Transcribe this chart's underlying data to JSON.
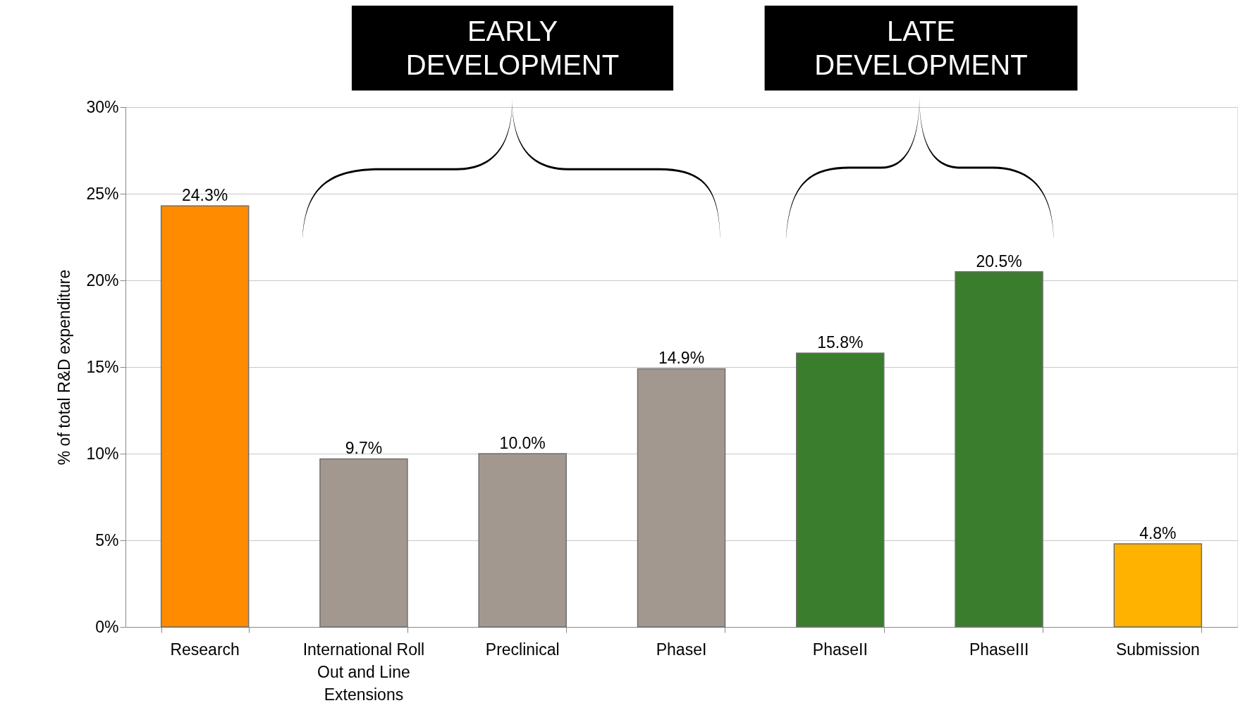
{
  "chart_data": {
    "type": "bar",
    "ylabel": "% of total R&D expenditure",
    "categories": [
      "Research",
      "International Roll Out and Line Extensions",
      "Preclinical",
      "PhaseI",
      "PhaseII",
      "PhaseIII",
      "Submission"
    ],
    "values": [
      24.3,
      9.7,
      10.0,
      14.9,
      15.8,
      20.5,
      4.8
    ],
    "colors": [
      "#ff8c00",
      "#a39890",
      "#a39890",
      "#a39890",
      "#3a7d2c",
      "#3a7d2c",
      "#ffb300"
    ],
    "value_labels": [
      "24.3%",
      "9.7%",
      "10.0%",
      "14.9%",
      "15.8%",
      "20.5%",
      "4.8%"
    ],
    "ylim": [
      0,
      30
    ],
    "yticks": [
      {
        "value": 0,
        "label": "0%"
      },
      {
        "value": 5,
        "label": "5%"
      },
      {
        "value": 10,
        "label": "10%"
      },
      {
        "value": 15,
        "label": "15%"
      },
      {
        "value": 20,
        "label": "20%"
      },
      {
        "value": 25,
        "label": "25%"
      },
      {
        "value": 30,
        "label": "30%"
      }
    ],
    "grid": "y",
    "annotations": [
      "EARLY\nDEVELOPMENT",
      "LATE\nDEVELOPMENT"
    ]
  }
}
